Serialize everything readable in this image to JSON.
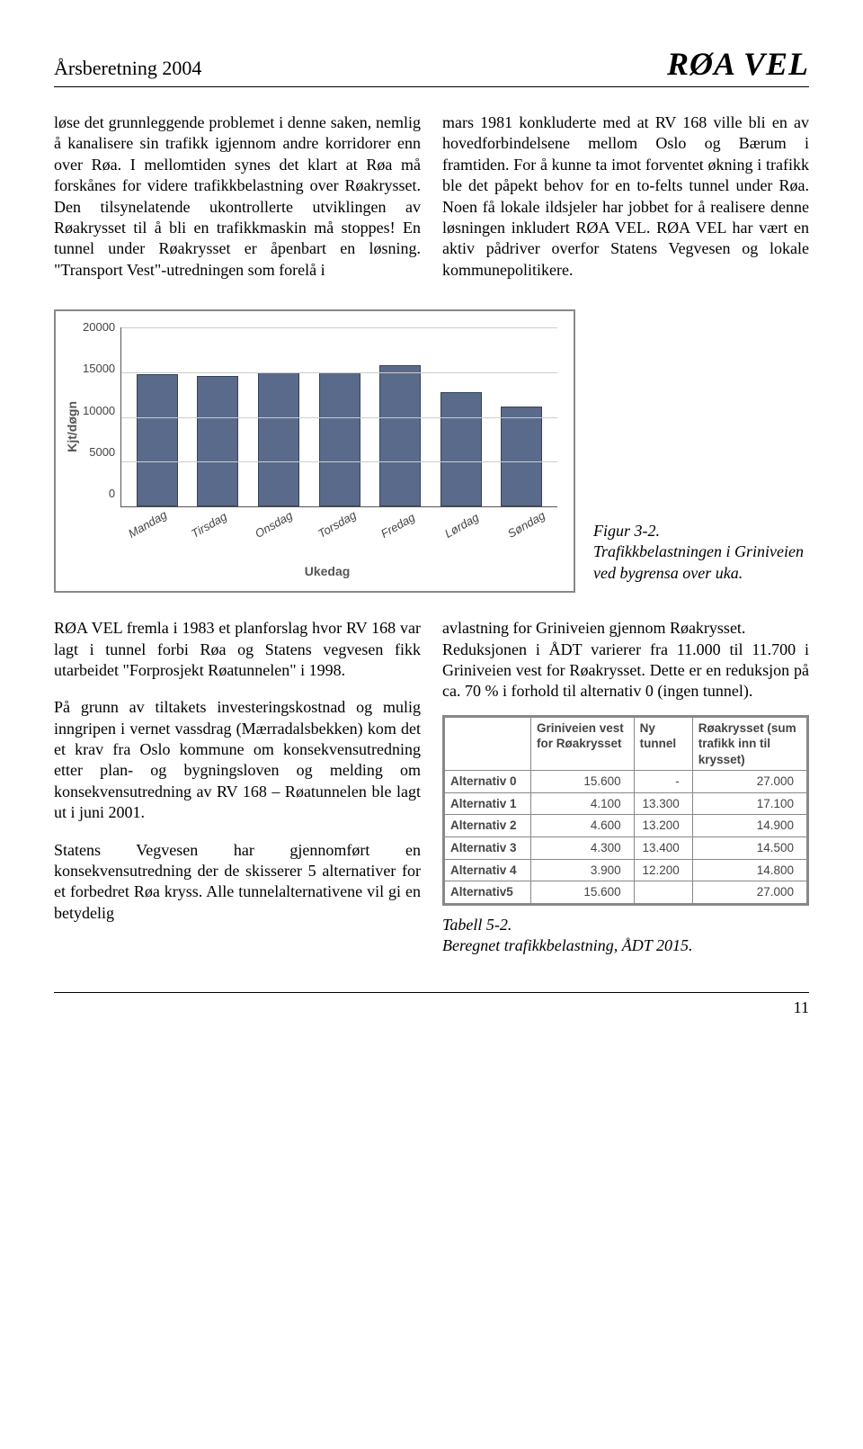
{
  "header": {
    "left": "Årsberetning 2004",
    "right": "RØA VEL"
  },
  "top_left_para": "løse det grunnleggende problemet i denne saken, nemlig å kanalisere sin trafikk igjennom andre korridorer enn over Røa. I mellomtiden synes det klart at Røa må forskånes for videre trafikkbelastning over Røakrysset. Den tilsynelatende ukontrollerte utviklingen av Røakrysset til å bli en trafikkmaskin må stoppes! En tunnel under Røakrysset er åpenbart en løsning. \"Transport Vest\"-utredningen som forelå i",
  "top_right_para": "mars 1981 konkluderte med at RV 168 ville bli en av hovedforbindelsene mellom Oslo og Bærum i framtiden. For å kunne ta imot forventet økning i trafikk ble det påpekt behov for en to-felts tunnel under Røa. Noen få lokale ildsjeler har jobbet for å realisere denne løsningen inkludert RØA VEL. RØA VEL har vært en aktiv pådriver overfor Statens Vegvesen og lokale kommunepolitikere.",
  "chart": {
    "type": "bar",
    "y_label": "Kjt/døgn",
    "x_label": "Ukedag",
    "y_ticks": [
      "20000",
      "15000",
      "10000",
      "5000",
      "0"
    ],
    "ylim_max": 20000,
    "grid_positions_pct": [
      0,
      25,
      50,
      75
    ],
    "categories": [
      "Mandag",
      "Tirsdag",
      "Onsdag",
      "Torsdag",
      "Fredag",
      "Lørdag",
      "Søndag"
    ],
    "values": [
      14800,
      14600,
      15000,
      15000,
      15800,
      12800,
      11200
    ],
    "bar_color": "#5a6a8a",
    "bar_border": "#334455",
    "grid_color": "#cccccc",
    "axis_color": "#555555",
    "frame_border": "#888888",
    "background": "#ffffff",
    "label_font": "Arial",
    "label_fontsize": 14,
    "tick_fontsize": 13
  },
  "chart_caption": {
    "line1": "Figur 3-2.",
    "line2": "Trafikkbelastningen i Griniveien ved bygrensa over uka."
  },
  "lower_left": {
    "p1": "RØA VEL fremla i 1983 et planforslag hvor RV 168 var lagt i tunnel forbi Røa og Statens vegvesen fikk utarbeidet \"Forprosjekt Røatunnelen\" i 1998.",
    "p2": "På grunn av tiltakets investeringskostnad og mulig inngripen i vernet vassdrag (Mærradalsbekken) kom det et krav fra Oslo kommune om konsekvensutredning etter plan- og bygningsloven og melding om konsekvensutredning av RV 168 – Røatunnelen ble lagt ut i juni 2001.",
    "p3": "Statens Vegvesen har gjennomført en konsekvensutredning der de skisserer 5 alternativer for et forbedret Røa kryss. Alle tunnelalternativene vil gi en betydelig"
  },
  "lower_right": {
    "p1": "avlastning for Griniveien gjennom Røakrysset.",
    "p2": "Reduksjonen i ÅDT varierer fra 11.000 til 11.700 i Griniveien vest for Røakrysset. Dette er en reduksjon på ca. 70 % i forhold til alternativ 0 (ingen tunnel)."
  },
  "table": {
    "headers": [
      "",
      "Griniveien vest for Røakrysset",
      "Ny tunnel",
      "Røakrysset (sum trafikk inn til krysset)"
    ],
    "rows": [
      [
        "Alternativ 0",
        "15.600",
        "-",
        "27.000"
      ],
      [
        "Alternativ 1",
        "4.100",
        "13.300",
        "17.100"
      ],
      [
        "Alternativ 2",
        "4.600",
        "13.200",
        "14.900"
      ],
      [
        "Alternativ 3",
        "4.300",
        "13.400",
        "14.500"
      ],
      [
        "Alternativ 4",
        "3.900",
        "12.200",
        "14.800"
      ],
      [
        "Alternativ5",
        "15.600",
        "",
        "27.000"
      ]
    ],
    "border_color": "#888888",
    "text_color": "#444444",
    "font": "Arial",
    "fontsize": 13.5
  },
  "table_caption": {
    "line1": "Tabell 5-2.",
    "line2": "Beregnet trafikkbelastning, ÅDT 2015."
  },
  "page_number": "11"
}
